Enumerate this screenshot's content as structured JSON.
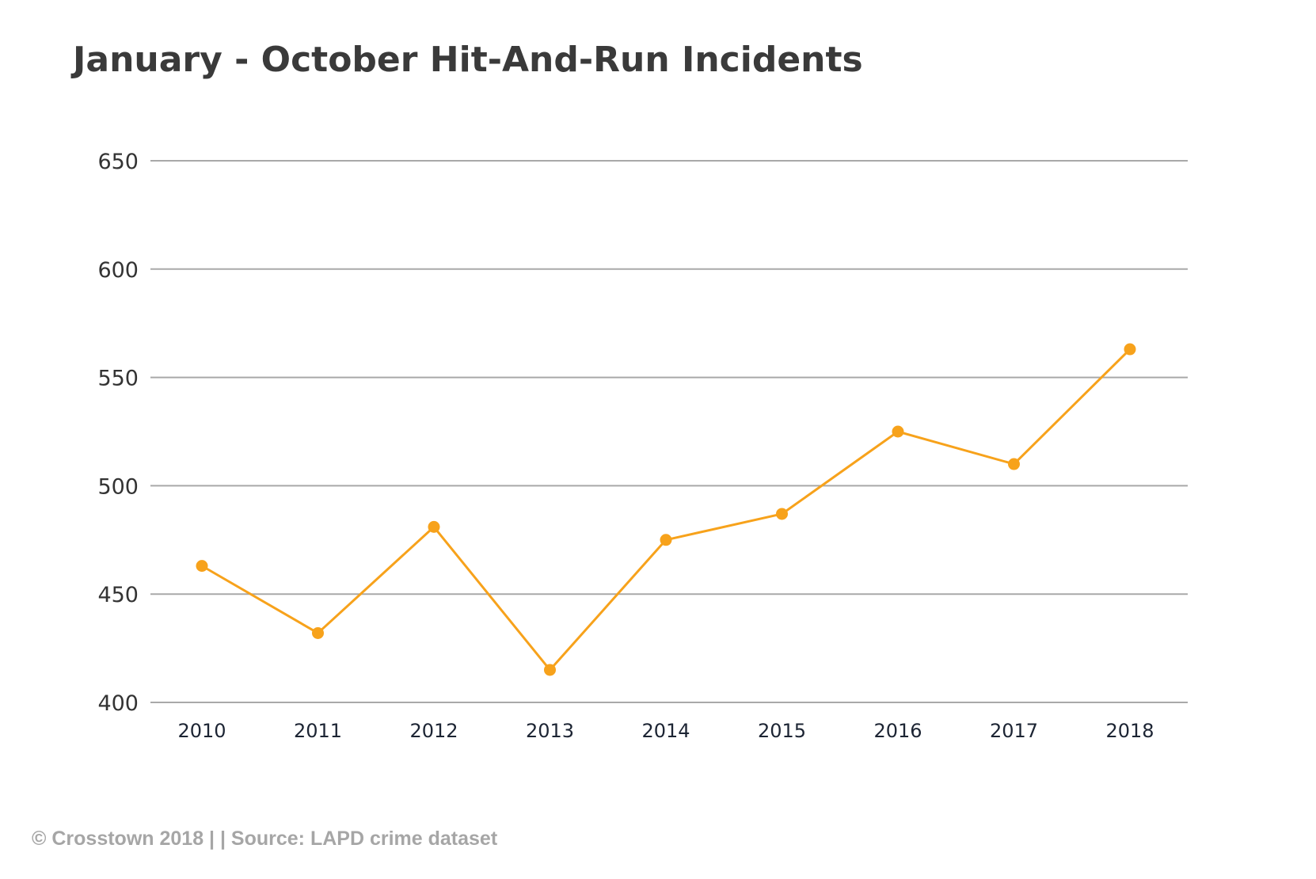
{
  "chart_data": {
    "type": "line",
    "title": "January - October Hit-And-Run Incidents",
    "xlabel": "",
    "ylabel": "",
    "categories": [
      "2010",
      "2011",
      "2012",
      "2013",
      "2014",
      "2015",
      "2016",
      "2017",
      "2018"
    ],
    "series": [
      {
        "values": [
          463,
          432,
          481,
          415,
          475,
          487,
          525,
          510,
          563
        ],
        "color": "#f7a21b"
      }
    ],
    "ylim": [
      400,
      650
    ],
    "yticks": [
      650,
      600,
      550,
      500,
      450,
      400
    ],
    "grid": true,
    "legend": "none",
    "colors": {
      "line": "#f7a21b",
      "grid": "#a9a9a9",
      "title": "#3a3a3a"
    }
  },
  "footer": {
    "credit": "© Crosstown 2018 | | Source: LAPD crime dataset"
  }
}
